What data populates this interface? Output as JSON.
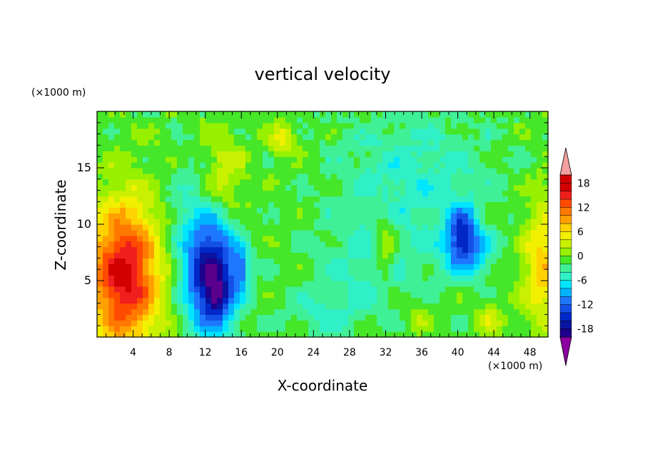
{
  "chart_data": {
    "type": "heatmap",
    "title": "vertical velocity",
    "xlabel": "X-coordinate",
    "ylabel": "Z-coordinate",
    "x_unit_label": "(×1000 m)",
    "y_unit_label": "(×1000 m)",
    "xlim": [
      0,
      50
    ],
    "ylim": [
      0,
      20
    ],
    "x_ticks": [
      4,
      8,
      12,
      16,
      20,
      24,
      28,
      32,
      36,
      40,
      44,
      48
    ],
    "y_ticks": [
      5,
      10,
      15
    ],
    "colorbar": {
      "levels": [
        -20,
        -18,
        -16,
        -14,
        -12,
        -10,
        -8,
        -6,
        -4,
        -2,
        0,
        2,
        4,
        6,
        8,
        10,
        12,
        14,
        16,
        18,
        20
      ],
      "tick_labels": [
        18,
        12,
        6,
        0,
        -6,
        -12,
        -18
      ],
      "colors": [
        "#5a008c",
        "#1e008c",
        "#0a14a0",
        "#0028c8",
        "#1450e6",
        "#1e78ff",
        "#00b4ff",
        "#00e6ff",
        "#30f0c8",
        "#40f096",
        "#46e628",
        "#96f000",
        "#c8f000",
        "#f0f000",
        "#ffd200",
        "#ffa000",
        "#ff7800",
        "#ff4b00",
        "#f01e1e",
        "#d20000",
        "#f0a0a0"
      ],
      "over_color": "#f4a0a0",
      "under_color": "#8c00a0"
    },
    "features": [
      {
        "x": 3.0,
        "z": 5.5,
        "w": 18,
        "sx": 2.8,
        "sz": 4.5
      },
      {
        "x": 49.5,
        "z": 6.5,
        "w": 8,
        "sx": 1.6,
        "sz": 4.0
      },
      {
        "x": 12.8,
        "z": 5.5,
        "w": -18,
        "sx": 2.0,
        "sz": 3.6
      },
      {
        "x": 13.3,
        "z": 3.5,
        "w": -6,
        "sx": 0.8,
        "sz": 1.0
      },
      {
        "x": 16.0,
        "z": 6.0,
        "w": -7,
        "sx": 0.6,
        "sz": 1.2
      },
      {
        "x": 40.5,
        "z": 9.5,
        "w": -10,
        "sx": 1.1,
        "sz": 1.6
      },
      {
        "x": 41.0,
        "z": 7.5,
        "w": -8,
        "sx": 2.0,
        "sz": 1.5
      },
      {
        "x": 32.0,
        "z": 8.0,
        "w": 6,
        "sx": 0.8,
        "sz": 2.0
      },
      {
        "x": 14.0,
        "z": 14.0,
        "w": 5,
        "sx": 1.6,
        "sz": 2.5
      },
      {
        "x": 20.5,
        "z": 17.5,
        "w": 6,
        "sx": 1.0,
        "sz": 1.0
      },
      {
        "x": 43.5,
        "z": 1.6,
        "w": 4,
        "sx": 1.0,
        "sz": 1.0
      },
      {
        "x": 35.5,
        "z": 1.8,
        "w": 3,
        "sx": 1.0,
        "sz": 1.0
      },
      {
        "x": 35.0,
        "z": 14.0,
        "w": -4,
        "sx": 6.0,
        "sz": 4.5
      },
      {
        "x": 25.0,
        "z": 2.0,
        "w": -3,
        "sx": 3.0,
        "sz": 1.5
      },
      {
        "x": 30.0,
        "z": 6.0,
        "w": -3,
        "sx": 4.0,
        "sz": 3.0
      },
      {
        "x": 10.0,
        "z": 10.0,
        "w": -3,
        "sx": 2.0,
        "sz": 4.0
      }
    ]
  }
}
